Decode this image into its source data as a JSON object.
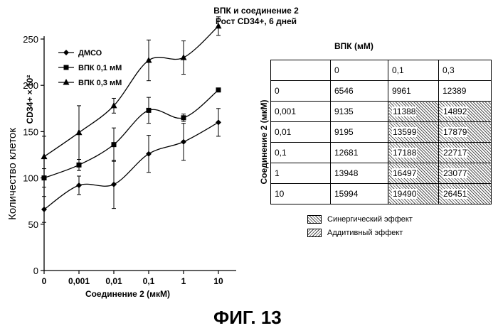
{
  "figure_caption": "ФИГ. 13",
  "chart_data": {
    "type": "line",
    "title": "ВПК и соединение 2",
    "subtitle": "Рост CD34+, 6 дней",
    "xlabel": "Соединение 2 (мкМ)",
    "ylabel": "Количество клеток",
    "ylabel_units": "CD34+ × 10²",
    "categories": [
      "0",
      "0,001",
      "0,01",
      "0,1",
      "1",
      "10"
    ],
    "ylim": [
      0,
      250
    ],
    "yticks": [
      "0",
      "50",
      "100",
      "150",
      "200",
      "250"
    ],
    "series": [
      {
        "name": "ДМСО",
        "marker": "diamond",
        "values": [
          66,
          92,
          93,
          126,
          139,
          160
        ],
        "errors": [
          14,
          10,
          26,
          20,
          20,
          15
        ]
      },
      {
        "name": "ВПК 0,1 мМ",
        "marker": "square",
        "values": [
          100,
          114,
          136,
          173,
          165,
          195
        ],
        "errors": [
          10,
          6,
          18,
          14,
          4,
          0
        ]
      },
      {
        "name": "ВПК 0,3 мМ",
        "marker": "triangle",
        "values": [
          123,
          149,
          178,
          227,
          230,
          264
        ],
        "errors": [
          22,
          29,
          8,
          22,
          18,
          10
        ]
      }
    ]
  },
  "table": {
    "header": "ВПК (мМ)",
    "row_label": "Соединение 2 (мкМ)",
    "columns": [
      "",
      "0",
      "0,1",
      "0,3"
    ],
    "rows": [
      {
        "label": "0",
        "cells": [
          {
            "v": "6546",
            "h": false
          },
          {
            "v": "9961",
            "h": false
          },
          {
            "v": "12389",
            "h": false
          }
        ]
      },
      {
        "label": "0,001",
        "cells": [
          {
            "v": "9135",
            "h": false
          },
          {
            "v": "11388",
            "h": true
          },
          {
            "v": "14892",
            "h": true
          }
        ]
      },
      {
        "label": "0,01",
        "cells": [
          {
            "v": "9195",
            "h": false
          },
          {
            "v": "13599",
            "h": true
          },
          {
            "v": "17879",
            "h": true
          }
        ]
      },
      {
        "label": "0,1",
        "cells": [
          {
            "v": "12681",
            "h": false
          },
          {
            "v": "17188",
            "h": true
          },
          {
            "v": "22717",
            "h": true
          }
        ]
      },
      {
        "label": "1",
        "cells": [
          {
            "v": "13948",
            "h": false
          },
          {
            "v": "16497",
            "h": true
          },
          {
            "v": "23077",
            "h": true
          }
        ]
      },
      {
        "label": "10",
        "cells": [
          {
            "v": "15994",
            "h": false
          },
          {
            "v": "19490",
            "h": true
          },
          {
            "v": "26451",
            "h": true
          }
        ]
      }
    ],
    "legend": {
      "synergy": "Синергический эффект",
      "additive": "Аддитивный эффект"
    }
  }
}
